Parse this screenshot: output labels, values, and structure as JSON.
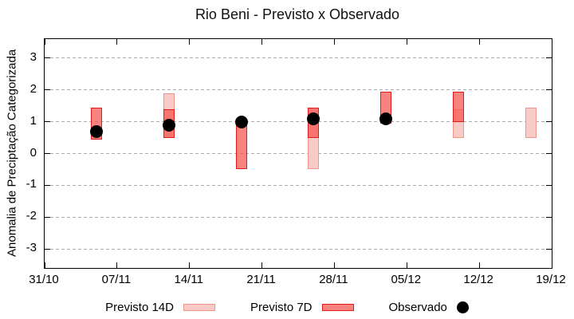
{
  "title": "Rio Beni - Previsto x Observado",
  "chart_data": {
    "type": "bar",
    "title": "Rio Beni - Previsto x Observado",
    "xlabel": "",
    "ylabel": "Anomalia de Preciptação Categorizada",
    "ylim": [
      -3.6,
      3.6
    ],
    "grid": "horizontal-dashed",
    "legend_position": "bottom-center",
    "x_axis": {
      "total_days": 49,
      "ticks": [
        {
          "day": 0,
          "label": "31/10"
        },
        {
          "day": 7,
          "label": "07/11"
        },
        {
          "day": 14,
          "label": "14/11"
        },
        {
          "day": 21,
          "label": "21/11"
        },
        {
          "day": 28,
          "label": "28/11"
        },
        {
          "day": 35,
          "label": "05/12"
        },
        {
          "day": 42,
          "label": "12/12"
        },
        {
          "day": 49,
          "label": "19/12"
        }
      ]
    },
    "y_axis": {
      "ticks": [
        3,
        2,
        1,
        0,
        -1,
        -2,
        -3
      ]
    },
    "series": [
      {
        "name": "Previsto 14D",
        "type": "range-bar",
        "points": [
          {
            "date": "12/11",
            "day": 12,
            "low": 0.5,
            "high": 1.9
          },
          {
            "date": "26/11",
            "day": 26,
            "low": -0.5,
            "high": 1.45
          },
          {
            "date": "10/12",
            "day": 40,
            "low": 0.5,
            "high": 1.4
          },
          {
            "date": "17/12",
            "day": 47,
            "low": 0.5,
            "high": 1.45
          }
        ]
      },
      {
        "name": "Previsto 7D",
        "type": "range-bar",
        "points": [
          {
            "date": "05/11",
            "day": 5,
            "low": 0.45,
            "high": 1.45
          },
          {
            "date": "12/11",
            "day": 12,
            "low": 0.5,
            "high": 1.4
          },
          {
            "date": "19/11",
            "day": 19,
            "low": -0.5,
            "high": 0.95
          },
          {
            "date": "26/11",
            "day": 26,
            "low": 0.5,
            "high": 1.45
          },
          {
            "date": "03/12",
            "day": 33,
            "low": 0.95,
            "high": 1.95
          },
          {
            "date": "10/12",
            "day": 40,
            "low": 1.0,
            "high": 1.95
          }
        ]
      },
      {
        "name": "Observado",
        "type": "scatter",
        "points": [
          {
            "date": "05/11",
            "day": 5,
            "value": 0.7
          },
          {
            "date": "12/11",
            "day": 12,
            "value": 0.9
          },
          {
            "date": "19/11",
            "day": 19,
            "value": 1.0
          },
          {
            "date": "26/11",
            "day": 26,
            "value": 1.1
          },
          {
            "date": "03/12",
            "day": 33,
            "value": 1.1
          }
        ]
      }
    ]
  },
  "colors": {
    "previsto_14d_fill": "#f9cbc6",
    "previsto_14d_border": "#f0938b",
    "previsto_7d_fill": "rgba(246,83,77,0.72)",
    "previsto_7d_border": "#e31a1c",
    "observado": "#000000",
    "grid": "#ababab",
    "axis": "#000000",
    "background": "#ffffff"
  },
  "legend": {
    "items": [
      {
        "label": "Previsto 14D",
        "swatch": "bar-14d"
      },
      {
        "label": "Previsto 7D",
        "swatch": "bar-7d"
      },
      {
        "label": "Observado",
        "swatch": "dot"
      }
    ]
  }
}
